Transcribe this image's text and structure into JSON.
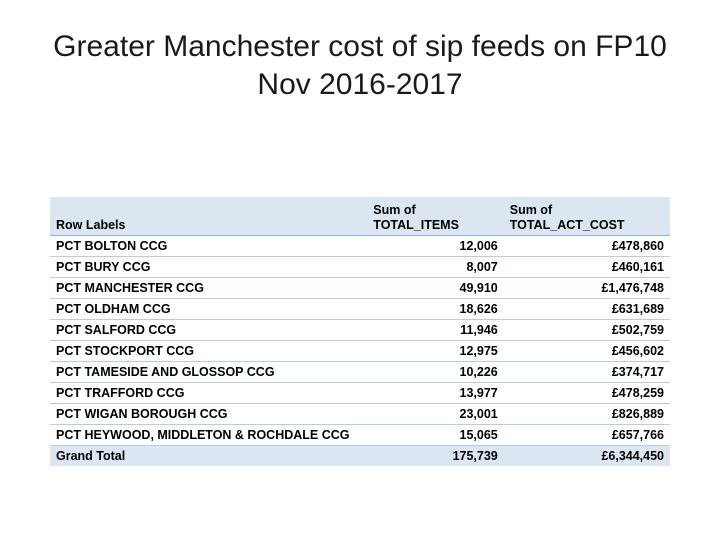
{
  "title_line1": "Greater Manchester cost of sip feeds on FP10",
  "title_line2": "Nov 2016-2017",
  "table": {
    "headers": {
      "row_labels": "Row Labels",
      "items_line1": "Sum of",
      "items_line2": "TOTAL_ITEMS",
      "cost_line1": "Sum of",
      "cost_line2": "TOTAL_ACT_COST"
    },
    "rows": [
      {
        "label": "PCT BOLTON CCG",
        "items": "12,006",
        "cost": "£478,860"
      },
      {
        "label": "PCT BURY CCG",
        "items": "8,007",
        "cost": "£460,161"
      },
      {
        "label": "PCT MANCHESTER CCG",
        "items": "49,910",
        "cost": "£1,476,748"
      },
      {
        "label": "PCT OLDHAM CCG",
        "items": "18,626",
        "cost": "£631,689"
      },
      {
        "label": "PCT SALFORD CCG",
        "items": "11,946",
        "cost": "£502,759"
      },
      {
        "label": "PCT STOCKPORT CCG",
        "items": "12,975",
        "cost": "£456,602"
      },
      {
        "label": "PCT TAMESIDE AND GLOSSOP CCG",
        "items": "10,226",
        "cost": "£374,717"
      },
      {
        "label": "PCT TRAFFORD CCG",
        "items": "13,977",
        "cost": "£478,259"
      },
      {
        "label": "PCT WIGAN BOROUGH CCG",
        "items": "23,001",
        "cost": "£826,889"
      },
      {
        "label": "PCT HEYWOOD, MIDDLETON & ROCHDALE CCG",
        "items": "15,065",
        "cost": "£657,766"
      }
    ],
    "total": {
      "label": "Grand Total",
      "items": "175,739",
      "cost": "£6,344,450"
    }
  }
}
